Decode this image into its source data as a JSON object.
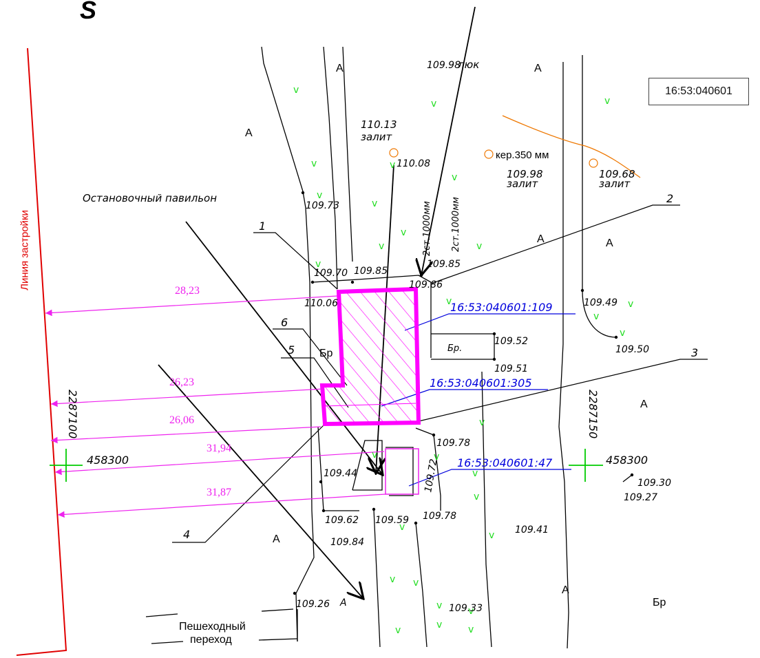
{
  "north_label": "S",
  "parcel_number": "16:53:040601",
  "building_line_label": "Линия застройки",
  "stop_pavilion_label": "Остановочный павильон",
  "crosswalk_label": [
    "Пешеходный",
    "переход"
  ],
  "leader_numbers": [
    "1",
    "2",
    "3",
    "4",
    "5",
    "6"
  ],
  "cadastral_numbers": [
    "16:53:040601:109",
    "16:53:040601:305",
    "16:53:040601:47"
  ],
  "distances": [
    "28,23",
    "26,23",
    "26,06",
    "31,94",
    "31,87"
  ],
  "grid": {
    "x_coord": "458300",
    "y_left": "2287100",
    "y_right": "2287150"
  },
  "surface_labels": {
    "asphalt": "А",
    "curb": "Бр",
    "curb_short": "Бр."
  },
  "pipes": {
    "left": "2ст.1000мм",
    "right": "2ст.1000мм",
    "cable": "кер.350 мм"
  },
  "manholes": [
    {
      "elev": "110.13",
      "note": "залит"
    },
    {
      "elev": "109.98",
      "note": "залит"
    },
    {
      "elev": "109.68",
      "note": "залит"
    }
  ],
  "hatch_label": "люк",
  "elevations": [
    "109.98",
    "110.08",
    "109.73",
    "109.70",
    "109.85",
    "109.85",
    "109.86",
    "110.06",
    "109.49",
    "109.52",
    "109.50",
    "109.51",
    "109.78",
    "109.72",
    "109.44",
    "109.62",
    "109.59",
    "109.78",
    "109.84",
    "109.41",
    "109.30",
    "109.27",
    "109.26",
    "109.33"
  ],
  "colors": {
    "building_line": "#e00000",
    "pavilion_outline": "#ff00ff",
    "dimension": "#ee22ee",
    "cadastral": "#0000dd",
    "grid_cross": "#00cc00",
    "cable": "#ee7700",
    "grass": "#22dd22"
  },
  "grass_symbol": "v"
}
